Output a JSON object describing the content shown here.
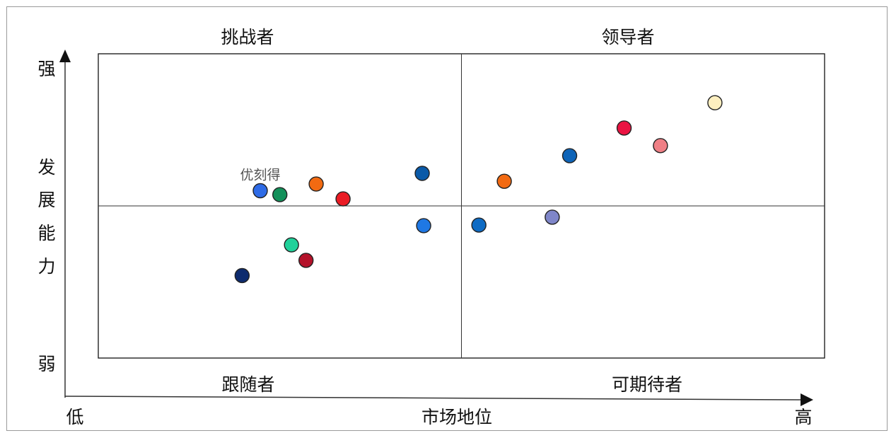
{
  "chart_data": {
    "type": "scatter",
    "quadrants": {
      "top_left": "挑战者",
      "top_right": "领导者",
      "bottom_left": "跟随者",
      "bottom_right": "可期待者"
    },
    "xlabel": "市场地位",
    "x_low": "低",
    "x_high": "高",
    "ylabel_chars": [
      "发",
      "展",
      "能",
      "力"
    ],
    "y_high": "强",
    "y_low": "弱",
    "xlim": [
      0,
      100
    ],
    "ylim": [
      0,
      100
    ],
    "mid": [
      50,
      50
    ],
    "points": [
      {
        "x": 22.3,
        "y": 55.0,
        "color": "#2e6be6",
        "label": "优刻得"
      },
      {
        "x": 25.0,
        "y": 53.7,
        "color": "#13905a",
        "label": ""
      },
      {
        "x": 30.0,
        "y": 57.2,
        "color": "#f26a12",
        "label": ""
      },
      {
        "x": 33.7,
        "y": 52.3,
        "color": "#ea1b24",
        "label": ""
      },
      {
        "x": 44.6,
        "y": 60.7,
        "color": "#0a5aa8",
        "label": ""
      },
      {
        "x": 44.8,
        "y": 43.5,
        "color": "#1f78e4",
        "label": ""
      },
      {
        "x": 26.6,
        "y": 37.2,
        "color": "#20d19a",
        "label": ""
      },
      {
        "x": 28.6,
        "y": 32.1,
        "color": "#b4122a",
        "label": ""
      },
      {
        "x": 19.8,
        "y": 27.1,
        "color": "#0d2b6e",
        "label": ""
      },
      {
        "x": 52.4,
        "y": 43.7,
        "color": "#0e6bc4",
        "label": ""
      },
      {
        "x": 55.9,
        "y": 58.1,
        "color": "#f26a12",
        "label": ""
      },
      {
        "x": 62.5,
        "y": 46.3,
        "color": "#7f86c9",
        "label": ""
      },
      {
        "x": 64.9,
        "y": 66.5,
        "color": "#0e64b8",
        "label": ""
      },
      {
        "x": 72.4,
        "y": 75.6,
        "color": "#ea1342",
        "label": ""
      },
      {
        "x": 77.4,
        "y": 69.8,
        "color": "#ef7f85",
        "label": ""
      },
      {
        "x": 84.9,
        "y": 83.9,
        "color": "#fdefc0",
        "label": ""
      }
    ]
  }
}
